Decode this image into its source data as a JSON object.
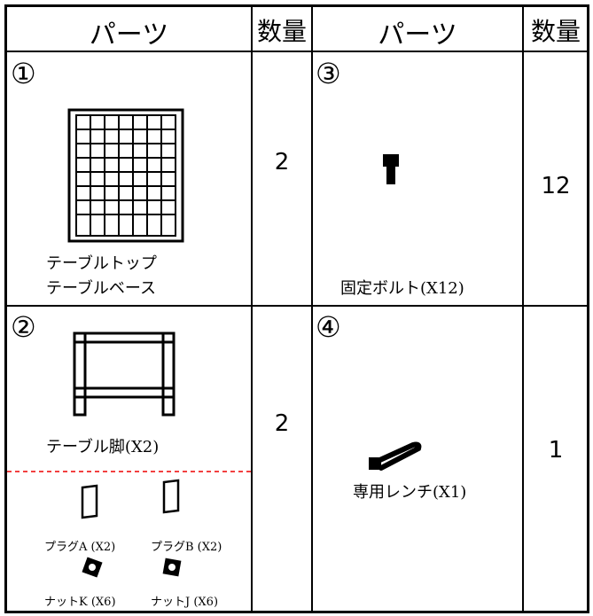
{
  "table": {
    "header": [
      "パーツ",
      "数量",
      "パーツ",
      "数量"
    ],
    "rows": [
      [
        {
          "number": "①",
          "labels": [
            "テーブルトップ",
            "テーブルベース"
          ]
        },
        "2",
        {
          "number": "③",
          "label": "固定ボルト(X12)"
        },
        "12"
      ],
      [
        {
          "number": "②",
          "label": "テーブル脚(X2)",
          "subparts": [
            "プラグA (X2)",
            "プラグB (X2)",
            "ナットK (X6)",
            "ナットJ (X6)"
          ]
        },
        "2",
        {
          "number": "④",
          "label": "専用レンチ(X1)"
        },
        "1"
      ]
    ]
  }
}
